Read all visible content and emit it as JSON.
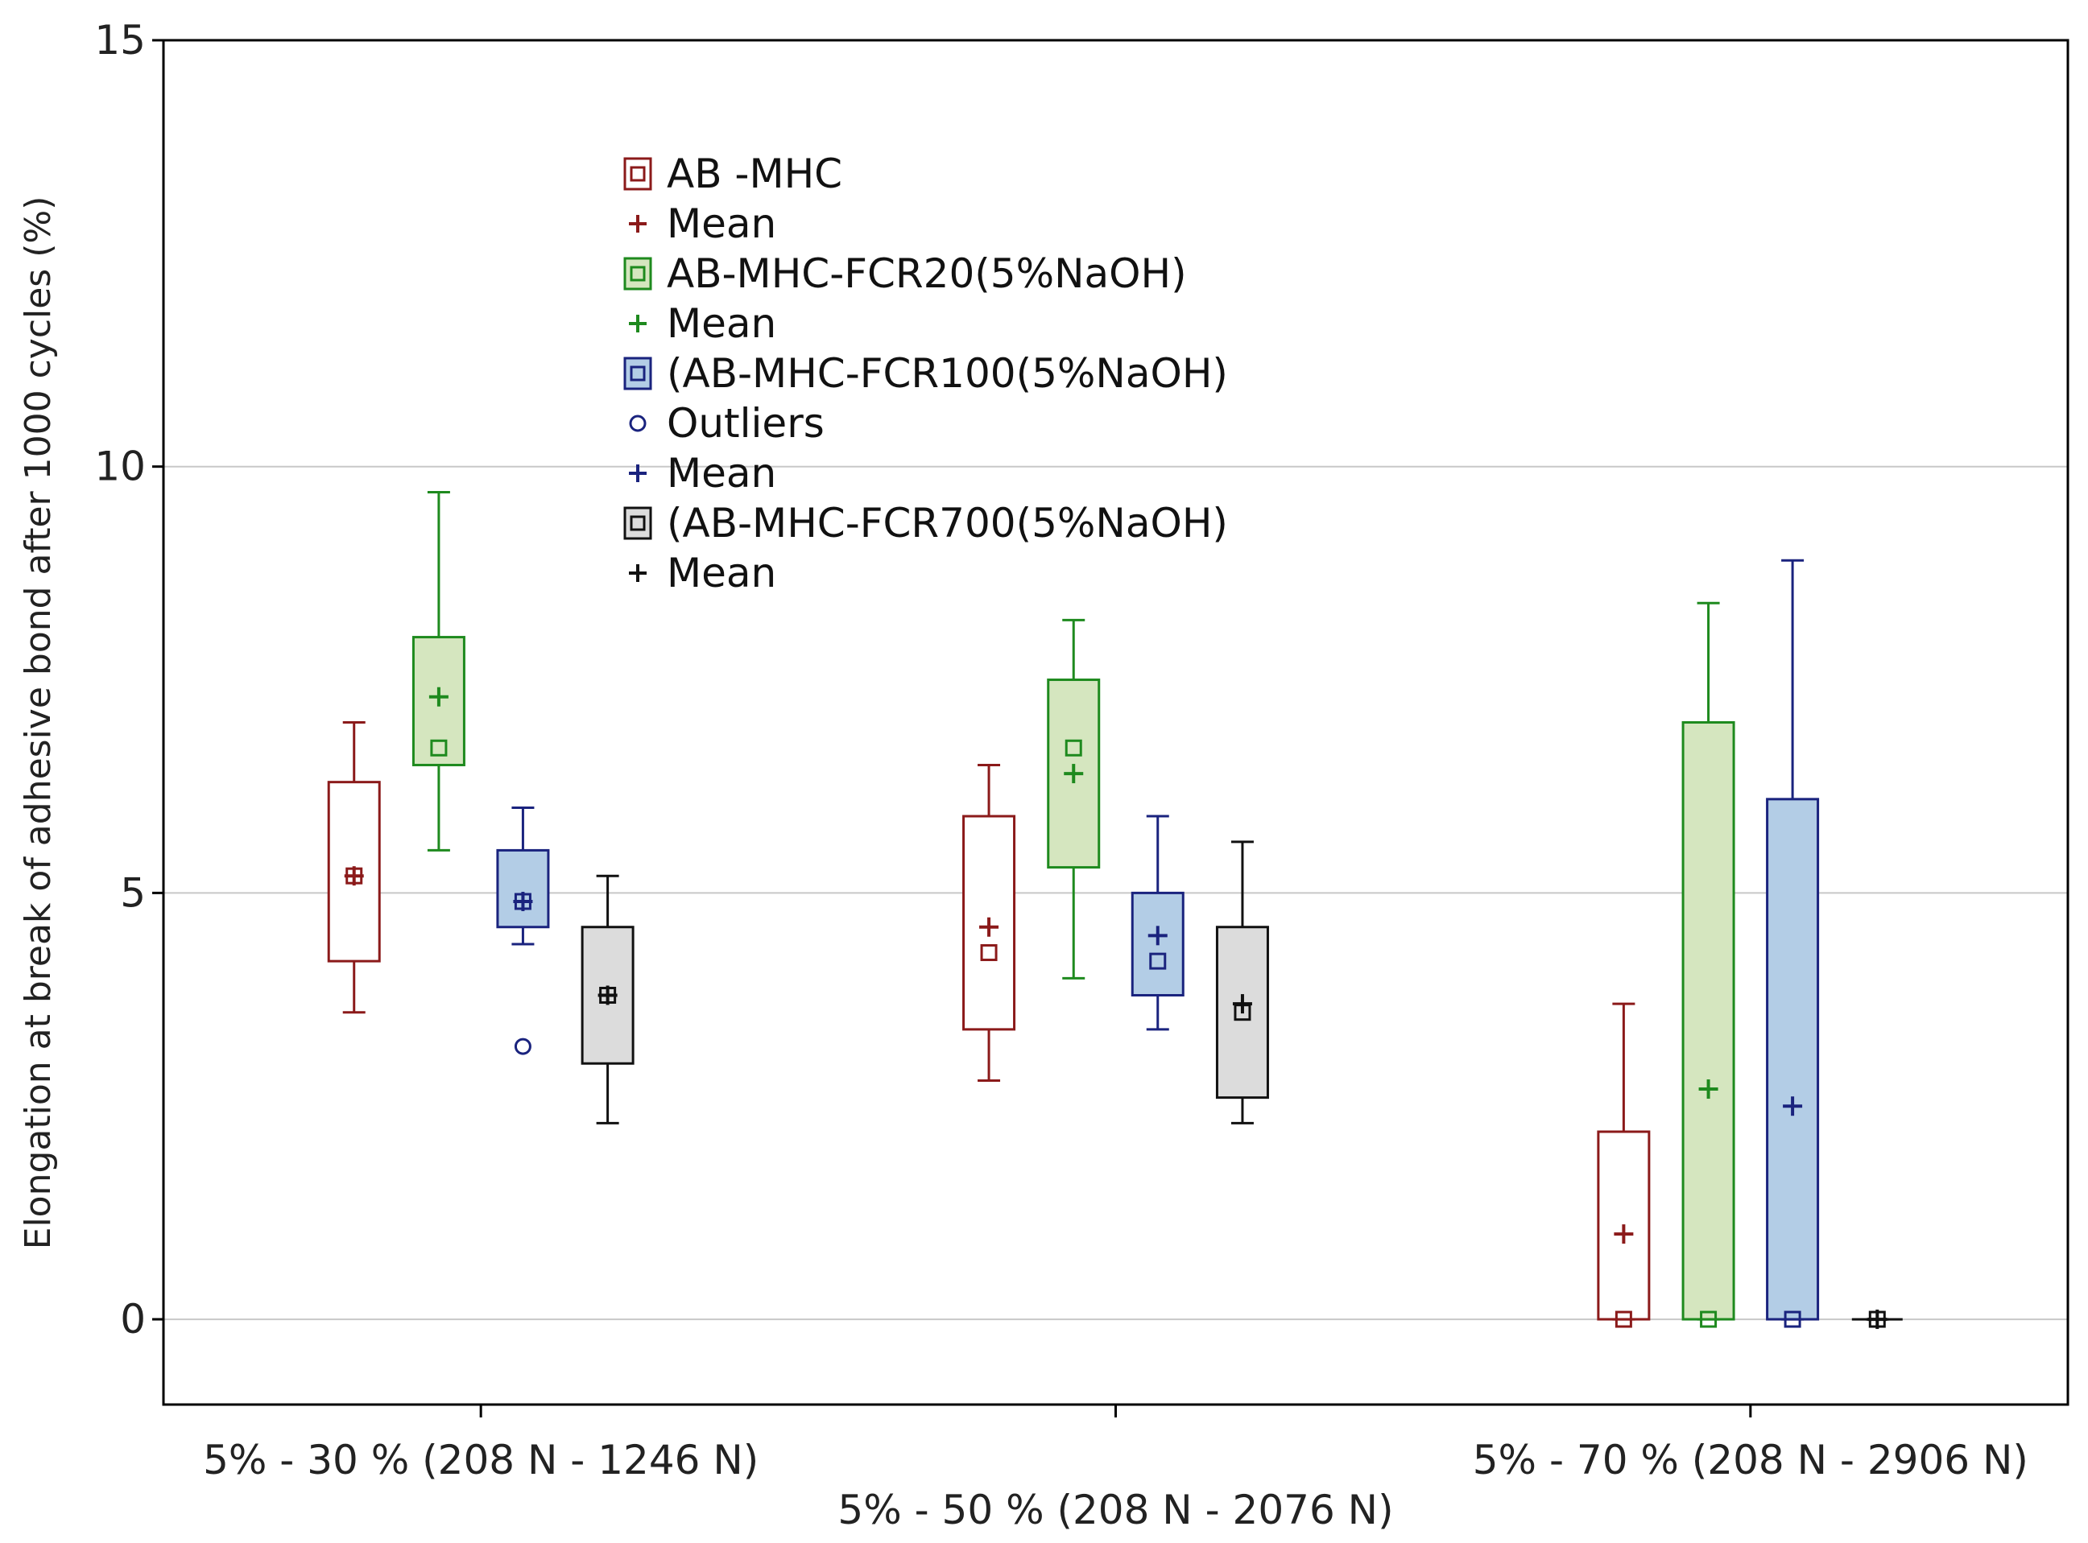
{
  "chart_data": {
    "type": "box",
    "title": "",
    "xlabel": "",
    "ylabel": "Elongation at break of adhesive bond after 1000 cycles (%)",
    "ylim": [
      -1,
      15
    ],
    "yticks": [
      0,
      5,
      10,
      15
    ],
    "grid": "horizontal",
    "legend_position": "top-center",
    "categories": [
      "5% - 30 % (208 N - 1246 N)",
      "5% - 50 % (208 N - 2076 N)",
      "5% - 70 % (208 N - 2906 N)"
    ],
    "legend": [
      {
        "label": "AB -MHC",
        "kind": "box",
        "series": 0
      },
      {
        "label": "Mean",
        "kind": "mean",
        "series": 0
      },
      {
        "label": "AB-MHC-FCR20(5%NaOH)",
        "kind": "box",
        "series": 1
      },
      {
        "label": "Mean",
        "kind": "mean",
        "series": 1
      },
      {
        "label": "(AB-MHC-FCR100(5%NaOH)",
        "kind": "box",
        "series": 2
      },
      {
        "label": "Outliers",
        "kind": "outlier",
        "series": 2
      },
      {
        "label": "Mean",
        "kind": "mean",
        "series": 2
      },
      {
        "label": "(AB-MHC-FCR700(5%NaOH)",
        "kind": "box",
        "series": 3
      },
      {
        "label": "Mean",
        "kind": "mean",
        "series": 3
      }
    ],
    "series": [
      {
        "name": "AB -MHC",
        "edge_color": "#8b1a1a",
        "fill_color": "#ffffff",
        "boxes": [
          {
            "min": 3.6,
            "q1": 4.2,
            "median": 5.2,
            "q3": 6.3,
            "max": 7.0,
            "mean": 5.2,
            "outliers": []
          },
          {
            "min": 2.8,
            "q1": 3.4,
            "median": 4.3,
            "q3": 5.9,
            "max": 6.5,
            "mean": 4.6,
            "outliers": []
          },
          {
            "min": 0.0,
            "q1": 0.0,
            "median": 0.0,
            "q3": 2.2,
            "max": 3.7,
            "mean": 1.0,
            "outliers": []
          }
        ]
      },
      {
        "name": "AB-MHC-FCR20(5%NaOH)",
        "edge_color": "#1e8a1e",
        "fill_color": "#d5e6bf",
        "boxes": [
          {
            "min": 5.5,
            "q1": 6.5,
            "median": 6.7,
            "q3": 8.0,
            "max": 9.7,
            "mean": 7.3,
            "outliers": []
          },
          {
            "min": 4.0,
            "q1": 5.3,
            "median": 6.7,
            "q3": 7.5,
            "max": 8.2,
            "mean": 6.4,
            "outliers": []
          },
          {
            "min": 0.0,
            "q1": 0.0,
            "median": 0.0,
            "q3": 7.0,
            "max": 8.4,
            "mean": 2.7,
            "outliers": []
          }
        ]
      },
      {
        "name": "(AB-MHC-FCR100(5%NaOH)",
        "edge_color": "#1a237e",
        "fill_color": "#b3cde6",
        "boxes": [
          {
            "min": 4.4,
            "q1": 4.6,
            "median": 4.9,
            "q3": 5.5,
            "max": 6.0,
            "mean": 4.9,
            "outliers": [
              3.2
            ]
          },
          {
            "min": 3.4,
            "q1": 3.8,
            "median": 4.2,
            "q3": 5.0,
            "max": 5.9,
            "mean": 4.5,
            "outliers": []
          },
          {
            "min": 0.0,
            "q1": 0.0,
            "median": 0.0,
            "q3": 6.1,
            "max": 8.9,
            "mean": 2.5,
            "outliers": []
          }
        ]
      },
      {
        "name": "(AB-MHC-FCR700(5%NaOH)",
        "edge_color": "#111111",
        "fill_color": "#dcdcdc",
        "boxes": [
          {
            "min": 2.3,
            "q1": 3.0,
            "median": 3.8,
            "q3": 4.6,
            "max": 5.2,
            "mean": 3.8,
            "outliers": []
          },
          {
            "min": 2.3,
            "q1": 2.6,
            "median": 3.6,
            "q3": 4.6,
            "max": 5.6,
            "mean": 3.7,
            "outliers": []
          },
          {
            "min": 0.0,
            "q1": 0.0,
            "median": 0.0,
            "q3": 0.0,
            "max": 0.0,
            "mean": 0.0,
            "outliers": []
          }
        ]
      }
    ]
  }
}
